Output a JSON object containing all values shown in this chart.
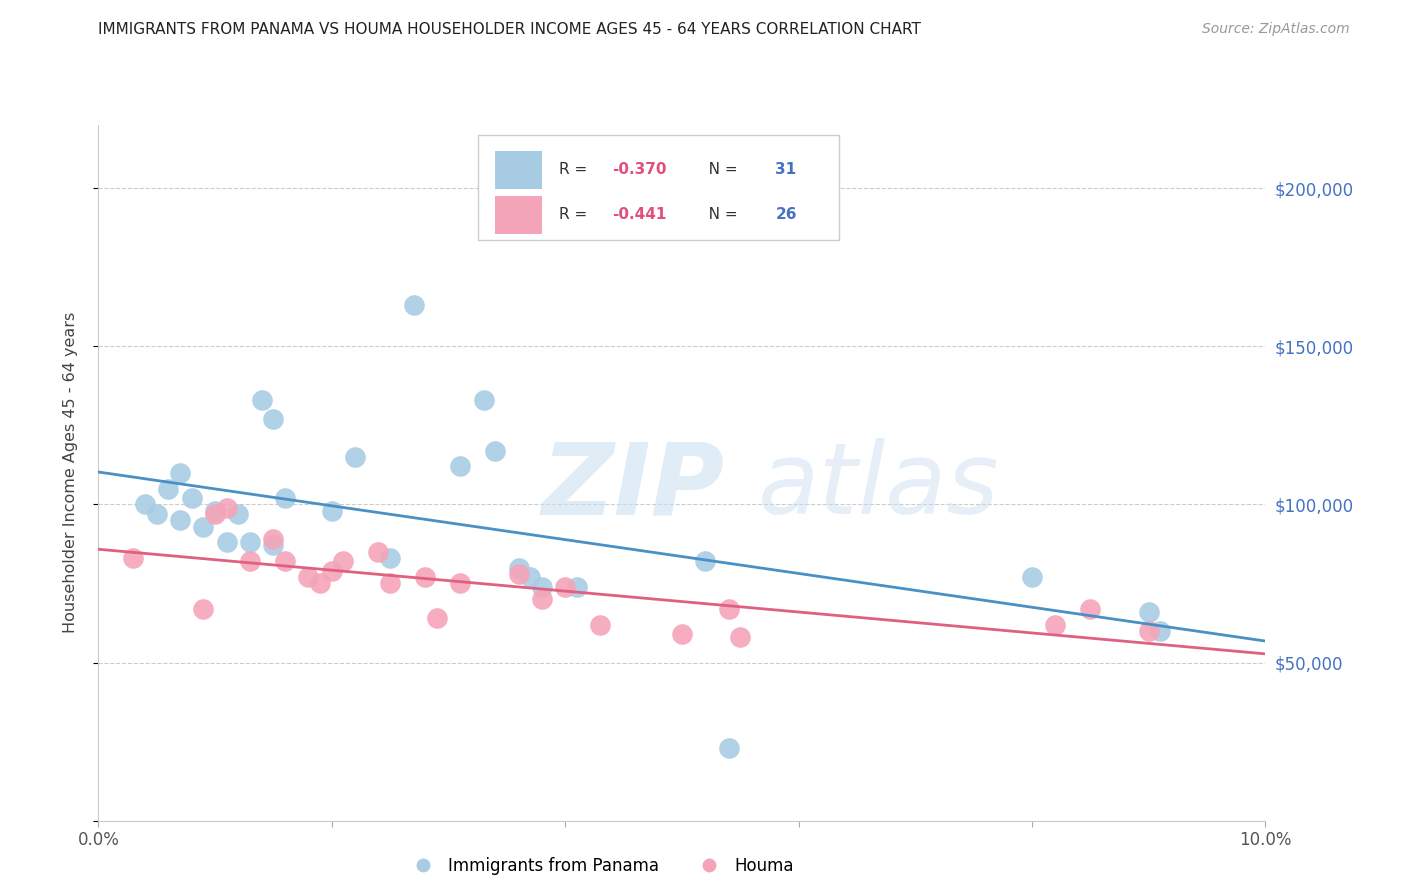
{
  "title": "IMMIGRANTS FROM PANAMA VS HOUMA HOUSEHOLDER INCOME AGES 45 - 64 YEARS CORRELATION CHART",
  "source": "Source: ZipAtlas.com",
  "ylabel": "Householder Income Ages 45 - 64 years",
  "xlim": [
    0.0,
    0.1
  ],
  "ylim": [
    0,
    220000
  ],
  "yticks": [
    0,
    50000,
    100000,
    150000,
    200000
  ],
  "right_ytick_labels": [
    "$50,000",
    "$100,000",
    "$150,000",
    "$200,000"
  ],
  "right_ytick_values": [
    50000,
    100000,
    150000,
    200000
  ],
  "blue_label": "Immigrants from Panama",
  "pink_label": "Houma",
  "blue_R": -0.37,
  "blue_N": 31,
  "pink_R": -0.441,
  "pink_N": 26,
  "blue_color": "#a8cce4",
  "pink_color": "#f4a4b8",
  "blue_line_color": "#4a90c4",
  "pink_line_color": "#e06080",
  "background_color": "#ffffff",
  "blue_x": [
    0.004,
    0.005,
    0.006,
    0.007,
    0.007,
    0.008,
    0.009,
    0.01,
    0.011,
    0.012,
    0.013,
    0.014,
    0.015,
    0.015,
    0.016,
    0.02,
    0.022,
    0.025,
    0.027,
    0.031,
    0.033,
    0.034,
    0.036,
    0.037,
    0.038,
    0.041,
    0.052,
    0.054,
    0.08,
    0.09,
    0.091
  ],
  "blue_y": [
    100000,
    97000,
    105000,
    110000,
    95000,
    102000,
    93000,
    98000,
    88000,
    97000,
    88000,
    133000,
    127000,
    87000,
    102000,
    98000,
    115000,
    83000,
    163000,
    112000,
    133000,
    117000,
    80000,
    77000,
    74000,
    74000,
    82000,
    23000,
    77000,
    66000,
    60000
  ],
  "pink_x": [
    0.003,
    0.009,
    0.01,
    0.011,
    0.013,
    0.015,
    0.016,
    0.018,
    0.019,
    0.02,
    0.021,
    0.024,
    0.025,
    0.028,
    0.029,
    0.031,
    0.036,
    0.038,
    0.04,
    0.043,
    0.05,
    0.054,
    0.055,
    0.082,
    0.085,
    0.09
  ],
  "pink_y": [
    83000,
    67000,
    97000,
    99000,
    82000,
    89000,
    82000,
    77000,
    75000,
    79000,
    82000,
    85000,
    75000,
    77000,
    64000,
    75000,
    78000,
    70000,
    74000,
    62000,
    59000,
    67000,
    58000,
    62000,
    67000,
    60000
  ]
}
